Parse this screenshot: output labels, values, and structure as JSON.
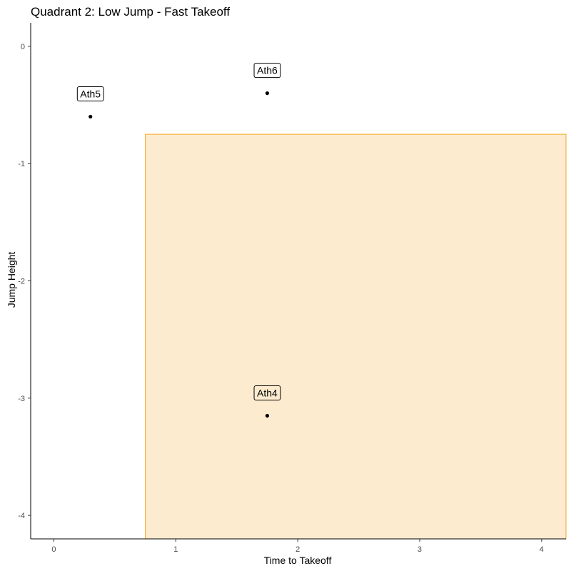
{
  "chart_data": {
    "type": "scatter",
    "title": "Quadrant 2: Low Jump - Fast Takeoff",
    "xlabel": "Time to Takeoff",
    "ylabel": "Jump Height",
    "xlim": [
      -0.19,
      4.2
    ],
    "ylim": [
      -4.2,
      0.2
    ],
    "xticks": [
      0,
      1,
      2,
      3,
      4
    ],
    "yticks": [
      0,
      -1,
      -2,
      -3,
      -4
    ],
    "grid": false,
    "highlight_region": {
      "x_from": 0.75,
      "x_to": 4.2,
      "y_from": -4.2,
      "y_to": -0.75,
      "fill": "#fdebd0",
      "stroke": "#f5a623"
    },
    "points": [
      {
        "label": "Ath5",
        "x": 0.3,
        "y": -0.6
      },
      {
        "label": "Ath6",
        "x": 1.75,
        "y": -0.4
      },
      {
        "label": "Ath4",
        "x": 1.75,
        "y": -3.15
      }
    ]
  }
}
